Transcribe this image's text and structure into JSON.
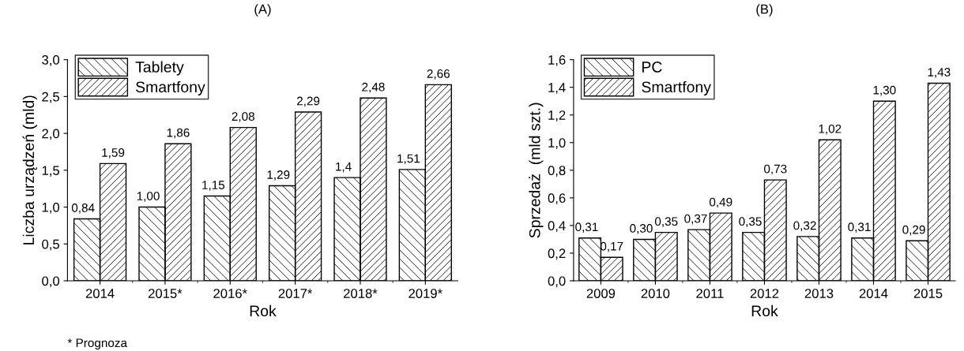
{
  "chart_data": [
    {
      "type": "bar",
      "title": "(A)",
      "xlabel": "Rok",
      "ylabel": "Liczba urządzeń (mld)",
      "categories": [
        "2014",
        "2015*",
        "2016*",
        "2017*",
        "2018*",
        "2019*"
      ],
      "series": [
        {
          "name": "Tablety",
          "color": "#000000",
          "values": [
            0.84,
            1.0,
            1.15,
            1.29,
            1.4,
            1.51
          ],
          "value_labels": [
            "0,84",
            "1,00",
            "1,15",
            "1,29",
            "1,4",
            "1,51"
          ]
        },
        {
          "name": "Smartfony",
          "color": "#000000",
          "values": [
            1.59,
            1.86,
            2.08,
            2.29,
            2.48,
            2.66
          ],
          "value_labels": [
            "1,59",
            "1,86",
            "2,08",
            "2,29",
            "2,48",
            "2,66"
          ]
        }
      ],
      "ylim": [
        0,
        3.0
      ],
      "yticks": [
        {
          "value": 0,
          "label": "0,0"
        },
        {
          "value": 0.5,
          "label": "0,5"
        },
        {
          "value": 1.0,
          "label": "1,0"
        },
        {
          "value": 1.5,
          "label": "1,5"
        },
        {
          "value": 2.0,
          "label": "2,0"
        },
        {
          "value": 2.5,
          "label": "2,5"
        },
        {
          "value": 3.0,
          "label": "3,0"
        }
      ],
      "grid": false,
      "legend": "top left",
      "annotations": [
        "* Prognoza"
      ]
    },
    {
      "type": "bar",
      "title": "(B)",
      "xlabel": "Rok",
      "ylabel": "Sprzedaż  (mld szt.)",
      "categories": [
        "2009",
        "2010",
        "2011",
        "2012",
        "2013",
        "2014",
        "2015"
      ],
      "series": [
        {
          "name": "PC",
          "color": "#000000",
          "values": [
            0.31,
            0.3,
            0.37,
            0.35,
            0.32,
            0.31,
            0.29
          ],
          "value_labels": [
            "0,31",
            "0,30",
            "0,37",
            "0,35",
            "0,32",
            "0,31",
            "0,29"
          ]
        },
        {
          "name": "Smartfony",
          "color": "#000000",
          "values": [
            0.17,
            0.35,
            0.49,
            0.73,
            1.02,
            1.3,
            1.43
          ],
          "value_labels": [
            "0,17",
            "0,35",
            "0,49",
            "0,73",
            "1,02",
            "1,30",
            "1,43"
          ]
        }
      ],
      "ylim": [
        0,
        1.6
      ],
      "yticks": [
        {
          "value": 0,
          "label": "0,0"
        },
        {
          "value": 0.2,
          "label": "0,2"
        },
        {
          "value": 0.4,
          "label": "0,4"
        },
        {
          "value": 0.6,
          "label": "0,6"
        },
        {
          "value": 0.8,
          "label": "0,8"
        },
        {
          "value": 1.0,
          "label": "1,0"
        },
        {
          "value": 1.2,
          "label": "1,2"
        },
        {
          "value": 1.4,
          "label": "1,4"
        },
        {
          "value": 1.6,
          "label": "1,6"
        }
      ],
      "grid": false,
      "legend": "top left"
    }
  ]
}
